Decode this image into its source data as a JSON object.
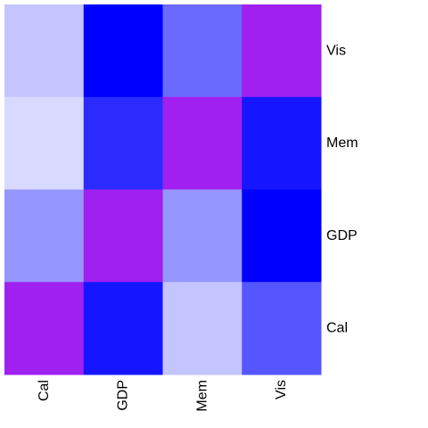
{
  "chart_data": {
    "type": "heatmap",
    "title": "",
    "xlabel": "",
    "ylabel": "",
    "x_categories": [
      "Cal",
      "GDP",
      "Mem",
      "Vis"
    ],
    "y_categories": [
      "Vis",
      "Mem",
      "GDP",
      "Cal"
    ],
    "diagonal_color": "#a020f0",
    "matrix_colors": [
      [
        "#c4c4ff",
        "#0000ff",
        "#6a6aff",
        "#a020f0"
      ],
      [
        "#d9d9ff",
        "#2b2bff",
        "#a020f0",
        "#1515ff"
      ],
      [
        "#9696ff",
        "#a020f0",
        "#9696ff",
        "#0000ff"
      ],
      [
        "#a020f0",
        "#1515ff",
        "#c4c4ff",
        "#5656ff"
      ]
    ],
    "grid": false,
    "legend": "none"
  }
}
